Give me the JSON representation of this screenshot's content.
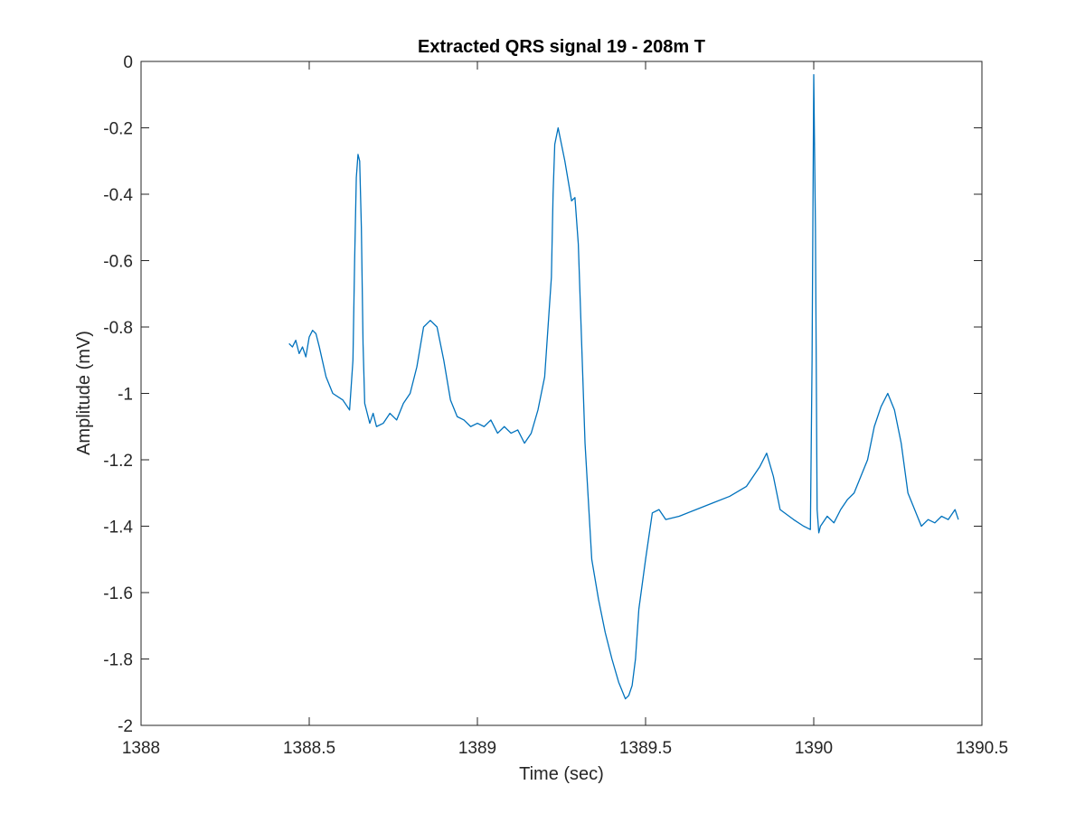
{
  "chart_data": {
    "type": "line",
    "title": "Extracted QRS signal 19 - 208m T",
    "xlabel": "Time (sec)",
    "ylabel": "Amplitude (mV)",
    "xlim": [
      1388,
      1390.5
    ],
    "ylim": [
      -2,
      0
    ],
    "xticks": [
      1388,
      1388.5,
      1389,
      1389.5,
      1390,
      1390.5
    ],
    "xtick_labels": [
      "1388",
      "1388.5",
      "1389",
      "1389.5",
      "1390",
      "1390.5"
    ],
    "yticks": [
      0,
      -0.2,
      -0.4,
      -0.6,
      -0.8,
      -1,
      -1.2,
      -1.4,
      -1.6,
      -1.8,
      -2
    ],
    "ytick_labels": [
      "0",
      "-0.2",
      "-0.4",
      "-0.6",
      "-0.8",
      "-1",
      "-1.2",
      "-1.4",
      "-1.6",
      "-1.8",
      "-2"
    ],
    "grid": false,
    "line_color": "#0072BD",
    "series": [
      {
        "x": [
          1388.44,
          1388.45,
          1388.46,
          1388.47,
          1388.48,
          1388.49,
          1388.5,
          1388.51,
          1388.52,
          1388.53,
          1388.55,
          1388.57,
          1388.6,
          1388.62,
          1388.63,
          1388.635,
          1388.64,
          1388.645,
          1388.65,
          1388.655,
          1388.66,
          1388.665,
          1388.67,
          1388.68,
          1388.69,
          1388.7,
          1388.72,
          1388.74,
          1388.76,
          1388.78,
          1388.8,
          1388.82,
          1388.84,
          1388.86,
          1388.88,
          1388.9,
          1388.92,
          1388.94,
          1388.96,
          1388.98,
          1389.0,
          1389.02,
          1389.04,
          1389.06,
          1389.08,
          1389.1,
          1389.12,
          1389.14,
          1389.16,
          1389.18,
          1389.2,
          1389.22,
          1389.225,
          1389.23,
          1389.24,
          1389.26,
          1389.28,
          1389.29,
          1389.3,
          1389.31,
          1389.32,
          1389.34,
          1389.36,
          1389.38,
          1389.4,
          1389.42,
          1389.44,
          1389.45,
          1389.46,
          1389.47,
          1389.48,
          1389.5,
          1389.52,
          1389.54,
          1389.56,
          1389.6,
          1389.65,
          1389.7,
          1389.75,
          1389.8,
          1389.84,
          1389.86,
          1389.88,
          1389.9,
          1389.94,
          1389.97,
          1389.99,
          1389.995,
          1390.0,
          1390.005,
          1390.01,
          1390.015,
          1390.02,
          1390.04,
          1390.06,
          1390.08,
          1390.1,
          1390.12,
          1390.14,
          1390.16,
          1390.18,
          1390.2,
          1390.22,
          1390.24,
          1390.26,
          1390.28,
          1390.3,
          1390.32,
          1390.34,
          1390.36,
          1390.38,
          1390.4,
          1390.42,
          1390.43
        ],
        "y": [
          -0.85,
          -0.86,
          -0.84,
          -0.88,
          -0.86,
          -0.89,
          -0.83,
          -0.81,
          -0.82,
          -0.86,
          -0.95,
          -1.0,
          -1.02,
          -1.05,
          -0.9,
          -0.6,
          -0.35,
          -0.28,
          -0.3,
          -0.5,
          -0.85,
          -1.03,
          -1.05,
          -1.09,
          -1.06,
          -1.1,
          -1.09,
          -1.06,
          -1.08,
          -1.03,
          -1.0,
          -0.92,
          -0.8,
          -0.78,
          -0.8,
          -0.9,
          -1.02,
          -1.07,
          -1.08,
          -1.1,
          -1.09,
          -1.1,
          -1.08,
          -1.12,
          -1.1,
          -1.12,
          -1.11,
          -1.15,
          -1.12,
          -1.05,
          -0.95,
          -0.65,
          -0.4,
          -0.25,
          -0.2,
          -0.3,
          -0.42,
          -0.41,
          -0.55,
          -0.85,
          -1.15,
          -1.5,
          -1.62,
          -1.72,
          -1.8,
          -1.87,
          -1.92,
          -1.91,
          -1.88,
          -1.8,
          -1.65,
          -1.5,
          -1.36,
          -1.35,
          -1.38,
          -1.37,
          -1.35,
          -1.33,
          -1.31,
          -1.28,
          -1.22,
          -1.18,
          -1.25,
          -1.35,
          -1.38,
          -1.4,
          -1.41,
          -0.9,
          -0.04,
          -0.5,
          -1.35,
          -1.42,
          -1.4,
          -1.37,
          -1.39,
          -1.35,
          -1.32,
          -1.3,
          -1.25,
          -1.2,
          -1.1,
          -1.04,
          -1.0,
          -1.05,
          -1.15,
          -1.3,
          -1.35,
          -1.4,
          -1.38,
          -1.39,
          -1.37,
          -1.38,
          -1.35,
          -1.38
        ]
      }
    ]
  }
}
